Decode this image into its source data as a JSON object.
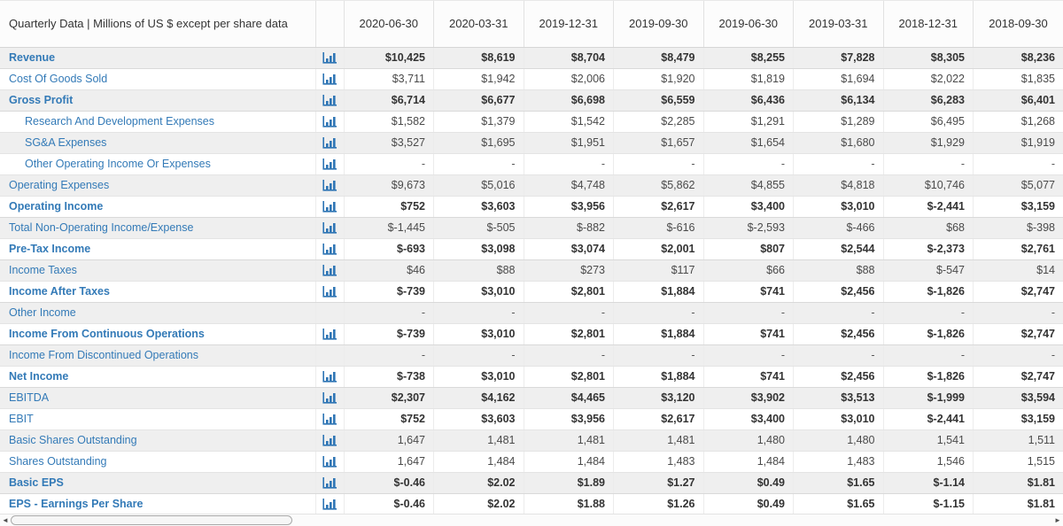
{
  "table": {
    "header_label": "Quarterly Data | Millions of US $ except per share data",
    "accent_color": "#337ab7",
    "stripe_color": "#efefef",
    "columns": [
      "2020-06-30",
      "2020-03-31",
      "2019-12-31",
      "2019-09-30",
      "2019-06-30",
      "2019-03-31",
      "2018-12-31",
      "2018-09-30"
    ],
    "rows": [
      {
        "label": "Revenue",
        "label_bold": true,
        "indent": false,
        "chart": true,
        "values_bold": true,
        "values": [
          "$10,425",
          "$8,619",
          "$8,704",
          "$8,479",
          "$8,255",
          "$7,828",
          "$8,305",
          "$8,236"
        ]
      },
      {
        "label": "Cost Of Goods Sold",
        "label_bold": false,
        "indent": false,
        "chart": true,
        "values_bold": false,
        "values": [
          "$3,711",
          "$1,942",
          "$2,006",
          "$1,920",
          "$1,819",
          "$1,694",
          "$2,022",
          "$1,835"
        ]
      },
      {
        "label": "Gross Profit",
        "label_bold": true,
        "indent": false,
        "chart": true,
        "values_bold": true,
        "values": [
          "$6,714",
          "$6,677",
          "$6,698",
          "$6,559",
          "$6,436",
          "$6,134",
          "$6,283",
          "$6,401"
        ]
      },
      {
        "label": "Research And Development Expenses",
        "label_bold": false,
        "indent": true,
        "chart": true,
        "values_bold": false,
        "values": [
          "$1,582",
          "$1,379",
          "$1,542",
          "$2,285",
          "$1,291",
          "$1,289",
          "$6,495",
          "$1,268"
        ]
      },
      {
        "label": "SG&A Expenses",
        "label_bold": false,
        "indent": true,
        "chart": true,
        "values_bold": false,
        "values": [
          "$3,527",
          "$1,695",
          "$1,951",
          "$1,657",
          "$1,654",
          "$1,680",
          "$1,929",
          "$1,919"
        ]
      },
      {
        "label": "Other Operating Income Or Expenses",
        "label_bold": false,
        "indent": true,
        "chart": true,
        "values_bold": false,
        "values": [
          "-",
          "-",
          "-",
          "-",
          "-",
          "-",
          "-",
          "-"
        ]
      },
      {
        "label": "Operating Expenses",
        "label_bold": false,
        "indent": false,
        "chart": true,
        "values_bold": false,
        "values": [
          "$9,673",
          "$5,016",
          "$4,748",
          "$5,862",
          "$4,855",
          "$4,818",
          "$10,746",
          "$5,077"
        ]
      },
      {
        "label": "Operating Income",
        "label_bold": true,
        "indent": false,
        "chart": true,
        "values_bold": true,
        "values": [
          "$752",
          "$3,603",
          "$3,956",
          "$2,617",
          "$3,400",
          "$3,010",
          "$-2,441",
          "$3,159"
        ]
      },
      {
        "label": "Total Non-Operating Income/Expense",
        "label_bold": false,
        "indent": false,
        "chart": true,
        "values_bold": false,
        "values": [
          "$-1,445",
          "$-505",
          "$-882",
          "$-616",
          "$-2,593",
          "$-466",
          "$68",
          "$-398"
        ]
      },
      {
        "label": "Pre-Tax Income",
        "label_bold": true,
        "indent": false,
        "chart": true,
        "values_bold": true,
        "values": [
          "$-693",
          "$3,098",
          "$3,074",
          "$2,001",
          "$807",
          "$2,544",
          "$-2,373",
          "$2,761"
        ]
      },
      {
        "label": "Income Taxes",
        "label_bold": false,
        "indent": false,
        "chart": true,
        "values_bold": false,
        "values": [
          "$46",
          "$88",
          "$273",
          "$117",
          "$66",
          "$88",
          "$-547",
          "$14"
        ]
      },
      {
        "label": "Income After Taxes",
        "label_bold": true,
        "indent": false,
        "chart": true,
        "values_bold": true,
        "values": [
          "$-739",
          "$3,010",
          "$2,801",
          "$1,884",
          "$741",
          "$2,456",
          "$-1,826",
          "$2,747"
        ]
      },
      {
        "label": "Other Income",
        "label_bold": false,
        "indent": false,
        "chart": false,
        "values_bold": false,
        "values": [
          "-",
          "-",
          "-",
          "-",
          "-",
          "-",
          "-",
          "-"
        ]
      },
      {
        "label": "Income From Continuous Operations",
        "label_bold": true,
        "indent": false,
        "chart": true,
        "values_bold": true,
        "values": [
          "$-739",
          "$3,010",
          "$2,801",
          "$1,884",
          "$741",
          "$2,456",
          "$-1,826",
          "$2,747"
        ]
      },
      {
        "label": "Income From Discontinued Operations",
        "label_bold": false,
        "indent": false,
        "chart": false,
        "values_bold": false,
        "values": [
          "-",
          "-",
          "-",
          "-",
          "-",
          "-",
          "-",
          "-"
        ]
      },
      {
        "label": "Net Income",
        "label_bold": true,
        "indent": false,
        "chart": true,
        "values_bold": true,
        "values": [
          "$-738",
          "$3,010",
          "$2,801",
          "$1,884",
          "$741",
          "$2,456",
          "$-1,826",
          "$2,747"
        ]
      },
      {
        "label": "EBITDA",
        "label_bold": false,
        "indent": false,
        "chart": true,
        "values_bold": true,
        "values": [
          "$2,307",
          "$4,162",
          "$4,465",
          "$3,120",
          "$3,902",
          "$3,513",
          "$-1,999",
          "$3,594"
        ]
      },
      {
        "label": "EBIT",
        "label_bold": false,
        "indent": false,
        "chart": true,
        "values_bold": true,
        "values": [
          "$752",
          "$3,603",
          "$3,956",
          "$2,617",
          "$3,400",
          "$3,010",
          "$-2,441",
          "$3,159"
        ]
      },
      {
        "label": "Basic Shares Outstanding",
        "label_bold": false,
        "indent": false,
        "chart": true,
        "values_bold": false,
        "values": [
          "1,647",
          "1,481",
          "1,481",
          "1,481",
          "1,480",
          "1,480",
          "1,541",
          "1,511"
        ]
      },
      {
        "label": "Shares Outstanding",
        "label_bold": false,
        "indent": false,
        "chart": true,
        "values_bold": false,
        "values": [
          "1,647",
          "1,484",
          "1,484",
          "1,483",
          "1,484",
          "1,483",
          "1,546",
          "1,515"
        ]
      },
      {
        "label": "Basic EPS",
        "label_bold": true,
        "indent": false,
        "chart": true,
        "values_bold": true,
        "values": [
          "$-0.46",
          "$2.02",
          "$1.89",
          "$1.27",
          "$0.49",
          "$1.65",
          "$-1.14",
          "$1.81"
        ]
      },
      {
        "label": "EPS - Earnings Per Share",
        "label_bold": true,
        "indent": false,
        "chart": true,
        "values_bold": true,
        "values": [
          "$-0.46",
          "$2.02",
          "$1.88",
          "$1.26",
          "$0.49",
          "$1.65",
          "$-1.15",
          "$1.81"
        ]
      }
    ]
  },
  "icons": {
    "chart_icon": "bar-chart-icon",
    "scroll_left": "◄",
    "scroll_right": "►"
  }
}
